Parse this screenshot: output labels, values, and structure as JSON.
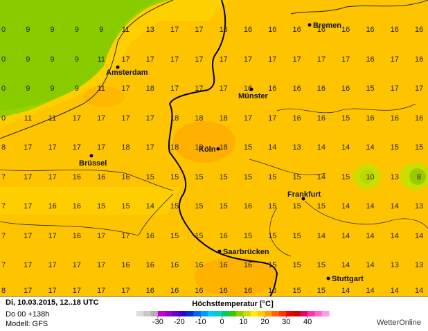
{
  "map": {
    "grid": {
      "rows": [
        [
          0,
          9,
          9,
          9,
          9,
          11,
          13,
          17,
          17,
          16,
          16,
          16,
          16,
          16,
          16,
          16,
          16,
          16
        ],
        [
          0,
          9,
          9,
          9,
          11,
          17,
          17,
          17,
          17,
          17,
          17,
          17,
          17,
          17,
          17,
          16,
          17,
          16
        ],
        [
          0,
          9,
          9,
          9,
          11,
          17,
          18,
          17,
          17,
          17,
          16,
          16,
          16,
          16,
          16,
          15,
          17,
          17
        ],
        [
          0,
          11,
          11,
          17,
          17,
          17,
          17,
          18,
          18,
          18,
          17,
          17,
          16,
          16,
          15,
          16,
          16,
          16
        ],
        [
          8,
          17,
          17,
          17,
          17,
          18,
          17,
          18,
          18,
          18,
          15,
          14,
          13,
          14,
          14,
          14,
          15,
          15
        ],
        [
          7,
          17,
          17,
          16,
          16,
          16,
          15,
          15,
          15,
          15,
          15,
          15,
          15,
          14,
          15,
          10,
          13,
          8
        ],
        [
          7,
          17,
          16,
          16,
          15,
          15,
          14,
          15,
          15,
          15,
          16,
          15,
          15,
          15,
          14,
          14,
          14,
          13
        ],
        [
          7,
          17,
          17,
          16,
          17,
          17,
          16,
          15,
          15,
          16,
          15,
          15,
          15,
          14,
          14,
          14,
          14,
          14
        ],
        [
          7,
          17,
          17,
          17,
          17,
          16,
          16,
          16,
          16,
          16,
          16,
          15,
          15,
          15,
          14,
          14,
          13,
          13
        ],
        [
          8,
          17,
          17,
          17,
          17,
          17,
          16,
          16,
          16,
          16,
          16,
          16,
          15,
          15,
          14,
          14,
          14,
          14
        ]
      ]
    },
    "cities": [
      {
        "name": "Bremen"
      },
      {
        "name": "Amsterdam"
      },
      {
        "name": "Münster"
      },
      {
        "name": "Köln"
      },
      {
        "name": "Brüssel"
      },
      {
        "name": "Frankfurt"
      },
      {
        "name": "Saarbrücken"
      },
      {
        "name": "Stuttgart"
      }
    ]
  },
  "footer": {
    "date": "Di, 10.03.2015, 12..18 UTC",
    "run": "Do 00 +138h",
    "model": "Modell: GFS",
    "legend_title": "Höchsttemperatur [°C]",
    "brand": "WetterOnline"
  },
  "legend": {
    "range": [
      -40,
      50
    ],
    "ticks": [
      -30,
      -20,
      -10,
      0,
      10,
      20,
      30,
      40
    ],
    "colors": [
      "#dddddd",
      "#c8c8c8",
      "#b0b0b0",
      "#cc00cc",
      "#9900cc",
      "#6600cc",
      "#3300cc",
      "#0033cc",
      "#0066ff",
      "#0099ff",
      "#00ccff",
      "#00cccc",
      "#00cc66",
      "#33cc00",
      "#99cc00",
      "#ccdd00",
      "#ffee00",
      "#ffcc00",
      "#ff9900",
      "#ff6600",
      "#ff3300",
      "#ee0000",
      "#cc0000",
      "#ee0066",
      "#ff33aa",
      "#ff66cc",
      "#ff99ee"
    ]
  }
}
